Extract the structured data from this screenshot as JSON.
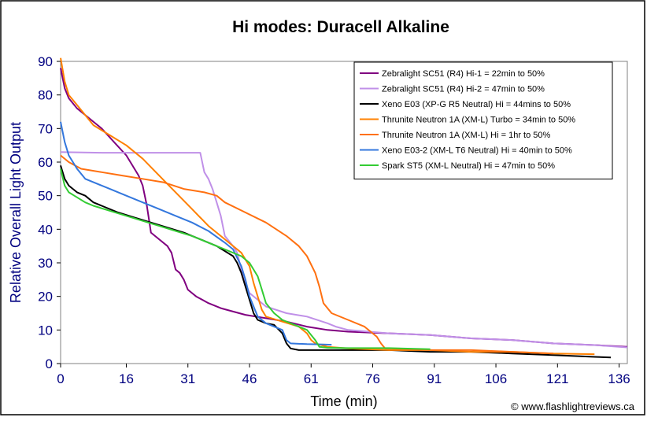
{
  "chart_data": {
    "type": "line",
    "title": "Hi modes: Duracell Alkaline",
    "xlabel": "Time (min)",
    "ylabel": "Relative Overall Light Output",
    "xlim": [
      0,
      138
    ],
    "ylim": [
      0,
      90
    ],
    "xticks": [
      0,
      16,
      31,
      46,
      61,
      76,
      91,
      106,
      121,
      136
    ],
    "yticks": [
      0,
      10,
      20,
      30,
      40,
      50,
      60,
      70,
      80,
      90
    ],
    "grid": false,
    "legend": "top-right",
    "copyright": "© www.flashlightreviews.ca",
    "colors": {
      "axis_text": "#000080",
      "plot_border": "#808080"
    },
    "series": [
      {
        "name": "Zebralight SC51 (R4) Hi-1 = 22min to 50%",
        "color": "#800080",
        "points": [
          [
            0,
            88
          ],
          [
            1,
            82
          ],
          [
            2,
            79
          ],
          [
            4,
            76
          ],
          [
            7,
            73
          ],
          [
            10,
            70
          ],
          [
            13,
            66
          ],
          [
            16,
            62
          ],
          [
            19,
            56
          ],
          [
            20,
            53
          ],
          [
            21,
            47
          ],
          [
            21.5,
            43
          ],
          [
            22,
            39
          ],
          [
            24,
            37
          ],
          [
            26,
            35
          ],
          [
            27,
            33
          ],
          [
            28,
            28
          ],
          [
            29,
            27
          ],
          [
            30,
            25
          ],
          [
            31,
            22
          ],
          [
            33,
            20
          ],
          [
            36,
            18
          ],
          [
            39,
            16.5
          ],
          [
            42,
            15.5
          ],
          [
            45,
            14.5
          ],
          [
            50,
            13.5
          ],
          [
            55,
            12.5
          ],
          [
            60,
            11
          ],
          [
            65,
            10
          ],
          [
            70,
            9.5
          ],
          [
            80,
            9
          ],
          [
            90,
            8.5
          ],
          [
            100,
            7.5
          ],
          [
            110,
            7
          ],
          [
            120,
            6
          ],
          [
            130,
            5.5
          ],
          [
            138,
            5
          ]
        ]
      },
      {
        "name": "Zebralight SC51 (R4) Hi-2 = 47min to 50%",
        "color": "#c090e8",
        "points": [
          [
            0,
            63
          ],
          [
            10,
            62.8
          ],
          [
            20,
            62.8
          ],
          [
            30,
            62.8
          ],
          [
            34,
            62.8
          ],
          [
            35,
            57
          ],
          [
            36,
            55
          ],
          [
            37,
            52
          ],
          [
            38,
            48
          ],
          [
            39,
            44
          ],
          [
            40,
            38
          ],
          [
            42,
            35
          ],
          [
            43,
            33
          ],
          [
            44,
            28
          ],
          [
            45,
            24
          ],
          [
            46,
            21
          ],
          [
            48,
            19
          ],
          [
            50,
            17
          ],
          [
            55,
            15
          ],
          [
            60,
            14
          ],
          [
            65,
            12
          ],
          [
            67,
            11
          ],
          [
            70,
            10
          ],
          [
            80,
            9
          ],
          [
            90,
            8.5
          ],
          [
            100,
            7.5
          ],
          [
            110,
            7
          ],
          [
            120,
            6
          ],
          [
            130,
            5.5
          ],
          [
            138,
            4.8
          ]
        ]
      },
      {
        "name": "Xeno E03 (XP-G R5 Neutral) Hi = 44mins to 50%",
        "color": "#000000",
        "points": [
          [
            0,
            59
          ],
          [
            1,
            55
          ],
          [
            2,
            53
          ],
          [
            4,
            51
          ],
          [
            6,
            50
          ],
          [
            8,
            48
          ],
          [
            10,
            47
          ],
          [
            14,
            45
          ],
          [
            18,
            43.5
          ],
          [
            22,
            42
          ],
          [
            26,
            40.5
          ],
          [
            30,
            39
          ],
          [
            34,
            37
          ],
          [
            38,
            35
          ],
          [
            42,
            32
          ],
          [
            43,
            30
          ],
          [
            44,
            27
          ],
          [
            45,
            23
          ],
          [
            46,
            19
          ],
          [
            47,
            15
          ],
          [
            48,
            13
          ],
          [
            50,
            12
          ],
          [
            52,
            11.5
          ],
          [
            54,
            9
          ],
          [
            55,
            6
          ],
          [
            56,
            4.5
          ],
          [
            58,
            4
          ],
          [
            65,
            4
          ],
          [
            80,
            4
          ],
          [
            90,
            3.5
          ],
          [
            100,
            3.5
          ],
          [
            110,
            3
          ],
          [
            120,
            2.5
          ],
          [
            130,
            2
          ],
          [
            134,
            1.8
          ]
        ]
      },
      {
        "name": "Thrunite Neutron 1A (XM-L) Turbo = 34min to 50%",
        "color": "#ff8000",
        "points": [
          [
            0,
            91
          ],
          [
            1,
            84
          ],
          [
            2,
            80
          ],
          [
            4,
            77
          ],
          [
            6,
            74
          ],
          [
            8,
            71
          ],
          [
            12,
            68
          ],
          [
            16,
            65
          ],
          [
            20,
            61
          ],
          [
            24,
            56
          ],
          [
            28,
            51
          ],
          [
            32,
            46
          ],
          [
            36,
            41
          ],
          [
            40,
            37
          ],
          [
            44,
            33
          ],
          [
            46,
            29
          ],
          [
            47,
            24
          ],
          [
            48,
            20
          ],
          [
            49,
            16
          ],
          [
            50,
            14
          ],
          [
            54,
            12.5
          ],
          [
            58,
            11
          ],
          [
            60,
            9
          ],
          [
            61,
            7
          ],
          [
            62,
            6
          ],
          [
            65,
            5
          ],
          [
            70,
            4.5
          ],
          [
            80,
            4
          ],
          [
            90,
            4
          ],
          [
            100,
            3.5
          ],
          [
            110,
            3.5
          ],
          [
            120,
            3
          ],
          [
            130,
            2.8
          ]
        ]
      },
      {
        "name": "Thrunite Neutron 1A (XM-L) Hi = 1hr to 50%",
        "color": "#ff7010",
        "points": [
          [
            0,
            62
          ],
          [
            2,
            60
          ],
          [
            5,
            58
          ],
          [
            10,
            57
          ],
          [
            15,
            56
          ],
          [
            20,
            55
          ],
          [
            25,
            54
          ],
          [
            30,
            52
          ],
          [
            35,
            51
          ],
          [
            38,
            50
          ],
          [
            40,
            48
          ],
          [
            45,
            45
          ],
          [
            50,
            42
          ],
          [
            55,
            38
          ],
          [
            58,
            35
          ],
          [
            60,
            32
          ],
          [
            62,
            27
          ],
          [
            63,
            23
          ],
          [
            64,
            18
          ],
          [
            66,
            15
          ],
          [
            70,
            13
          ],
          [
            74,
            11
          ],
          [
            76,
            9
          ],
          [
            77,
            8
          ],
          [
            78,
            6
          ],
          [
            79,
            4.5
          ],
          [
            80,
            4.5
          ],
          [
            90,
            4
          ],
          [
            100,
            4
          ],
          [
            110,
            3.5
          ],
          [
            120,
            3
          ]
        ]
      },
      {
        "name": "Xeno E03-2 (XM-L T6 Neutral) Hi = 40min to 50%",
        "color": "#3377dd",
        "points": [
          [
            0,
            72
          ],
          [
            1,
            66
          ],
          [
            2,
            62
          ],
          [
            4,
            58
          ],
          [
            6,
            55
          ],
          [
            8,
            54
          ],
          [
            12,
            52
          ],
          [
            16,
            50
          ],
          [
            20,
            48
          ],
          [
            24,
            46
          ],
          [
            28,
            44
          ],
          [
            32,
            42
          ],
          [
            36,
            39.5
          ],
          [
            40,
            36
          ],
          [
            42,
            34
          ],
          [
            44,
            29
          ],
          [
            45,
            25
          ],
          [
            46,
            20
          ],
          [
            47,
            17
          ],
          [
            48,
            14
          ],
          [
            50,
            12
          ],
          [
            54,
            10
          ],
          [
            55,
            7
          ],
          [
            56,
            6
          ],
          [
            60,
            5.8
          ],
          [
            64,
            5.7
          ],
          [
            66,
            5.6
          ]
        ]
      },
      {
        "name": "Spark ST5 (XM-L Neutral) Hi = 47min to 50%",
        "color": "#33cc33",
        "points": [
          [
            0,
            58
          ],
          [
            1,
            53
          ],
          [
            2,
            51
          ],
          [
            4,
            49.5
          ],
          [
            6,
            48
          ],
          [
            8,
            47
          ],
          [
            12,
            45.5
          ],
          [
            16,
            44
          ],
          [
            20,
            42.5
          ],
          [
            24,
            41
          ],
          [
            28,
            39.5
          ],
          [
            32,
            38
          ],
          [
            36,
            36
          ],
          [
            40,
            34
          ],
          [
            44,
            32
          ],
          [
            46,
            30
          ],
          [
            48,
            26
          ],
          [
            49,
            22
          ],
          [
            50,
            18
          ],
          [
            52,
            15
          ],
          [
            54,
            13
          ],
          [
            56,
            12
          ],
          [
            60,
            10
          ],
          [
            62,
            7
          ],
          [
            63,
            5
          ],
          [
            65,
            4.7
          ],
          [
            70,
            4.6
          ],
          [
            80,
            4.6
          ],
          [
            90,
            4.3
          ]
        ]
      }
    ]
  }
}
